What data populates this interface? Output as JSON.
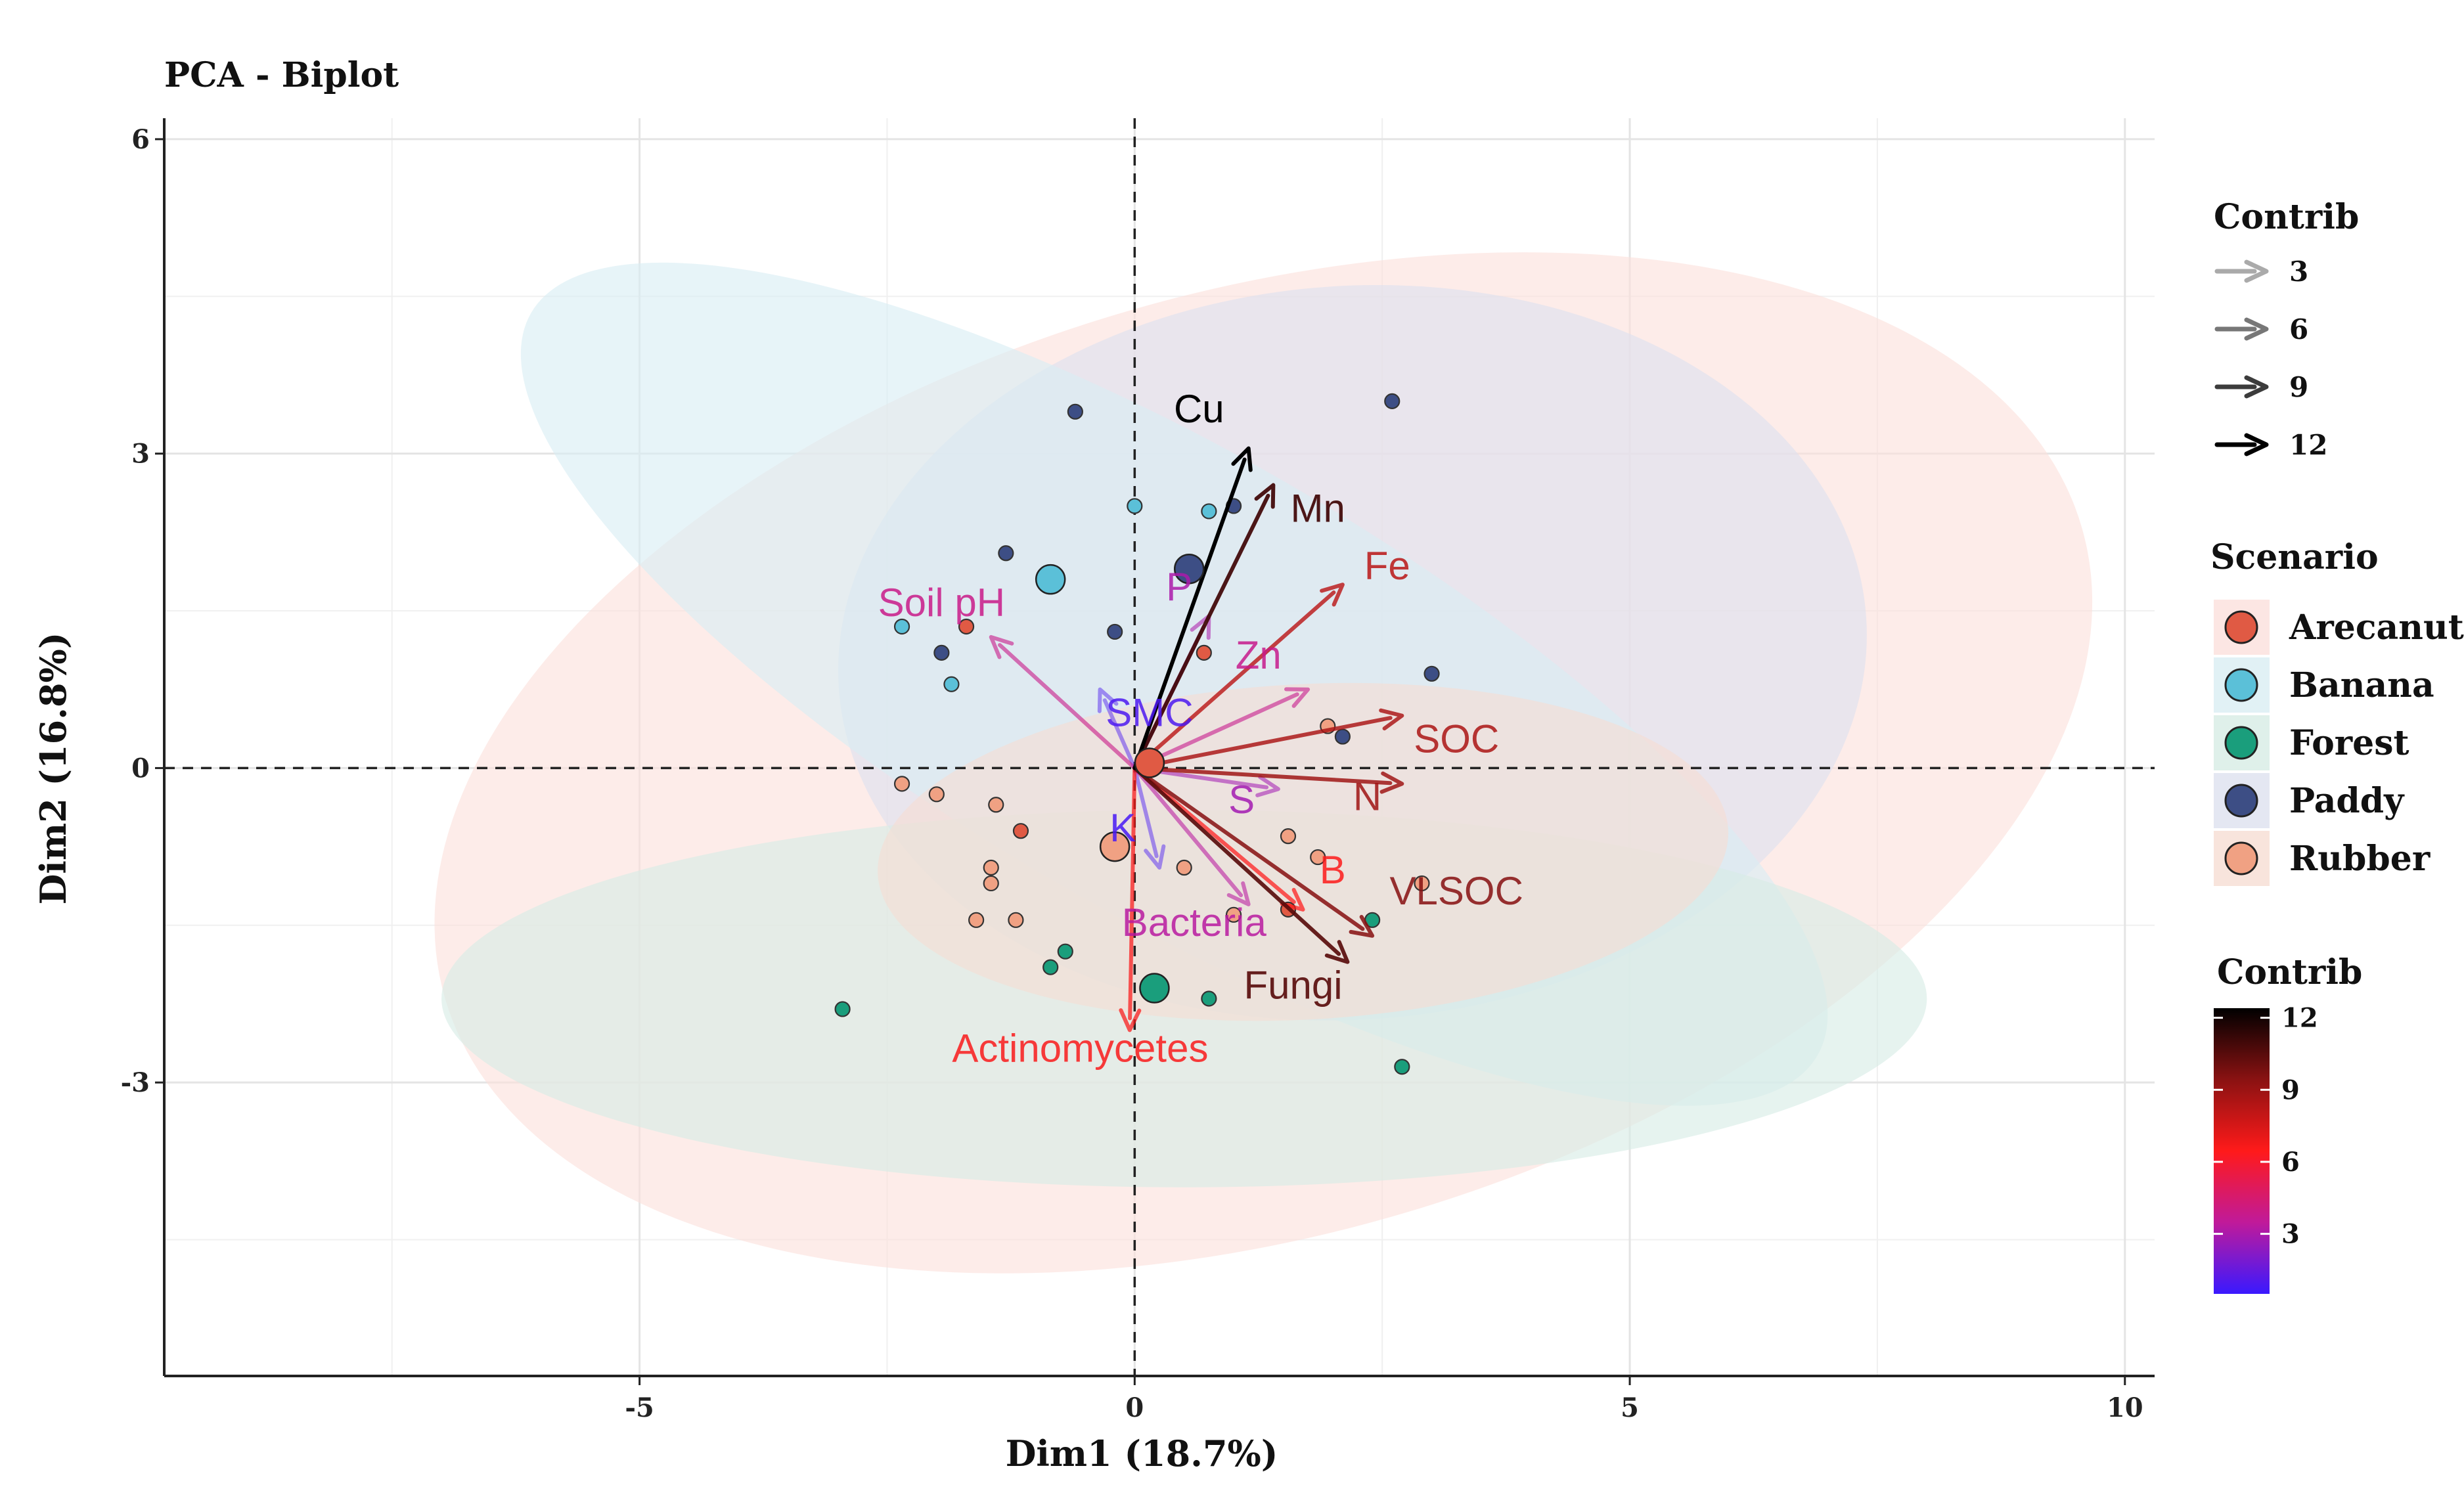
{
  "chart_data": {
    "type": "scatter",
    "title": "PCA - Biplot",
    "xlabel": "Dim1 (18.7%)",
    "ylabel": "Dim2 (16.8%)",
    "xlim": [
      -9.8,
      10.3
    ],
    "ylim": [
      -5.8,
      6.2
    ],
    "x_ticks": [
      -5,
      0,
      5,
      10
    ],
    "y_ticks": [
      -3,
      0,
      3,
      6
    ],
    "grid": true,
    "colors": {
      "Arecanut": "#e05a44",
      "Banana": "#5bc0d8",
      "Forest": "#1a9e7c",
      "Paddy": "#3d4e85",
      "Rubber": "#f0a183"
    },
    "ellipses": [
      {
        "group": "Arecanut",
        "cx": 1.3,
        "cy": 0.05,
        "rx": 8.6,
        "ry": 4.5,
        "angle": -16,
        "fill": "#fbe0dc"
      },
      {
        "group": "Paddy",
        "cx": 2.2,
        "cy": 1.1,
        "rx": 5.2,
        "ry": 3.5,
        "angle": -4,
        "fill": "#dde1ef"
      },
      {
        "group": "Banana",
        "cx": 0.4,
        "cy": 0.8,
        "rx": 7.5,
        "ry": 2.2,
        "angle": 30,
        "fill": "#d9eef3"
      },
      {
        "group": "Forest",
        "cx": 0.5,
        "cy": -2.2,
        "rx": 7.5,
        "ry": 1.8,
        "angle": 0,
        "fill": "#d7ece5"
      },
      {
        "group": "Rubber",
        "cx": 1.7,
        "cy": -0.8,
        "rx": 4.3,
        "ry": 1.6,
        "angle": -3,
        "fill": "#f6ddd3"
      }
    ],
    "points": [
      {
        "group": "Paddy",
        "x": -0.6,
        "y": 3.4
      },
      {
        "group": "Paddy",
        "x": 2.6,
        "y": 3.5
      },
      {
        "group": "Paddy",
        "x": -1.3,
        "y": 2.05
      },
      {
        "group": "Paddy",
        "x": -0.2,
        "y": 1.3
      },
      {
        "group": "Paddy",
        "x": -1.95,
        "y": 1.1
      },
      {
        "group": "Paddy",
        "x": 3.0,
        "y": 0.9
      },
      {
        "group": "Paddy",
        "x": 2.1,
        "y": 0.3
      },
      {
        "group": "Paddy",
        "x": 1.0,
        "y": 2.5
      },
      {
        "group": "Banana",
        "x": 0.0,
        "y": 2.5
      },
      {
        "group": "Banana",
        "x": 0.75,
        "y": 2.45
      },
      {
        "group": "Banana",
        "x": -2.35,
        "y": 1.35
      },
      {
        "group": "Banana",
        "x": -1.85,
        "y": 0.8
      },
      {
        "group": "Arecanut",
        "x": 0.7,
        "y": 1.1
      },
      {
        "group": "Arecanut",
        "x": -1.7,
        "y": 1.35
      },
      {
        "group": "Arecanut",
        "x": -1.15,
        "y": -0.6
      },
      {
        "group": "Arecanut",
        "x": 1.55,
        "y": -1.35
      },
      {
        "group": "Rubber",
        "x": -2.35,
        "y": -0.15
      },
      {
        "group": "Rubber",
        "x": -2.0,
        "y": -0.25
      },
      {
        "group": "Rubber",
        "x": -1.4,
        "y": -0.35
      },
      {
        "group": "Rubber",
        "x": -1.45,
        "y": -0.95
      },
      {
        "group": "Rubber",
        "x": -1.45,
        "y": -1.1
      },
      {
        "group": "Rubber",
        "x": -1.6,
        "y": -1.45
      },
      {
        "group": "Rubber",
        "x": -1.2,
        "y": -1.45
      },
      {
        "group": "Rubber",
        "x": 0.5,
        "y": -0.95
      },
      {
        "group": "Rubber",
        "x": 1.55,
        "y": -0.65
      },
      {
        "group": "Rubber",
        "x": 1.85,
        "y": -0.85
      },
      {
        "group": "Rubber",
        "x": 1.95,
        "y": 0.4
      },
      {
        "group": "Rubber",
        "x": 1.0,
        "y": -1.4
      },
      {
        "group": "Rubber",
        "x": 2.9,
        "y": -1.1
      },
      {
        "group": "Forest",
        "x": -0.7,
        "y": -1.75
      },
      {
        "group": "Forest",
        "x": -0.85,
        "y": -1.9
      },
      {
        "group": "Forest",
        "x": -2.95,
        "y": -2.3
      },
      {
        "group": "Forest",
        "x": 0.75,
        "y": -2.2
      },
      {
        "group": "Forest",
        "x": 2.4,
        "y": -1.45
      },
      {
        "group": "Forest",
        "x": 2.7,
        "y": -2.85
      }
    ],
    "centroids": [
      {
        "group": "Arecanut",
        "x": 0.15,
        "y": 0.05
      },
      {
        "group": "Banana",
        "x": -0.85,
        "y": 1.8
      },
      {
        "group": "Forest",
        "x": 0.2,
        "y": -2.1
      },
      {
        "group": "Paddy",
        "x": 0.55,
        "y": 1.9
      },
      {
        "group": "Rubber",
        "x": -0.2,
        "y": -0.75
      }
    ],
    "variables": [
      {
        "label": "Cu",
        "x": 1.15,
        "y": 3.05,
        "contrib": 12.4,
        "lx": 0.65,
        "ly": 3.3
      },
      {
        "label": "Mn",
        "x": 1.4,
        "y": 2.7,
        "contrib": 11.0,
        "lx": 1.85,
        "ly": 2.35
      },
      {
        "label": "Fe",
        "x": 2.1,
        "y": 1.75,
        "contrib": 8.2,
        "lx": 2.55,
        "ly": 1.8
      },
      {
        "label": "SOC",
        "x": 2.7,
        "y": 0.5,
        "contrib": 8.6,
        "lx": 3.25,
        "ly": 0.15
      },
      {
        "label": "N",
        "x": 2.7,
        "y": -0.15,
        "contrib": 8.9,
        "lx": 2.35,
        "ly": -0.4
      },
      {
        "label": "VLSOC",
        "x": 2.4,
        "y": -1.6,
        "contrib": 9.5,
        "lx": 3.25,
        "ly": -1.3
      },
      {
        "label": "Fungi",
        "x": 2.15,
        "y": -1.85,
        "contrib": 10.5,
        "lx": 1.6,
        "ly": -2.2
      },
      {
        "label": "B",
        "x": 1.7,
        "y": -1.35,
        "contrib": 6.5,
        "lx": 2.0,
        "ly": -1.1
      },
      {
        "label": "S",
        "x": 1.45,
        "y": -0.2,
        "contrib": 2.8,
        "lx": 1.08,
        "ly": -0.43
      },
      {
        "label": "Bacteria",
        "x": 1.15,
        "y": -1.3,
        "contrib": 3.3,
        "lx": 0.6,
        "ly": -1.6
      },
      {
        "label": "Actinomycetes",
        "x": -0.05,
        "y": -2.5,
        "contrib": 6.6,
        "lx": -0.55,
        "ly": -2.8
      },
      {
        "label": "Zn",
        "x": 1.75,
        "y": 0.75,
        "contrib": 3.8,
        "lx": 1.25,
        "ly": 0.95
      },
      {
        "label": "P",
        "x": 0.75,
        "y": 1.45,
        "contrib": 3.0,
        "lx": 0.45,
        "ly": 1.6
      },
      {
        "label": "Soil pH",
        "x": -1.45,
        "y": 1.25,
        "contrib": 3.9,
        "lx": -1.95,
        "ly": 1.45
      },
      {
        "label": "SMC",
        "x": -0.35,
        "y": 0.75,
        "contrib": 0.9,
        "lx": 0.15,
        "ly": 0.4
      },
      {
        "label": "K",
        "x": 0.25,
        "y": -0.95,
        "contrib": 0.8,
        "lx": -0.12,
        "ly": -0.7
      }
    ],
    "legend_contrib_arrows": {
      "title": "Contrib",
      "entries": [
        {
          "label": "3"
        },
        {
          "label": "6"
        },
        {
          "label": "9"
        },
        {
          "label": "12"
        }
      ]
    },
    "legend_scenario": {
      "title": "Scenario",
      "entries": [
        "Arecanut",
        "Banana",
        "Forest",
        "Paddy",
        "Rubber"
      ]
    },
    "legend_contrib_colorbar": {
      "title": "Contrib",
      "range": [
        0.5,
        12.4
      ],
      "ticks": [
        "3",
        "6",
        "9",
        "12"
      ],
      "gradient": [
        "#3a19ff",
        "#c01a9a",
        "#ff1a1a",
        "#8a1212",
        "#000000"
      ]
    },
    "legend_placement": "right"
  }
}
